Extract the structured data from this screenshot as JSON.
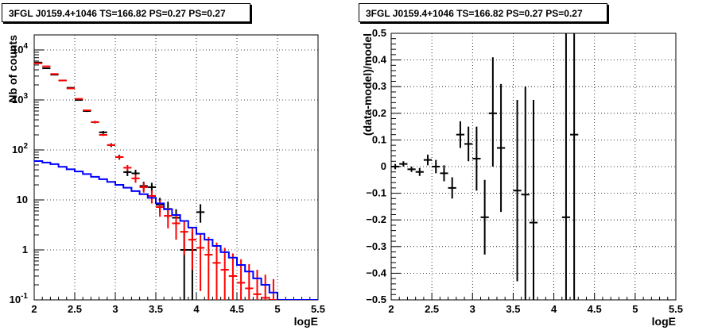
{
  "left_panel": {
    "title": "3FGL J0159.4+1046 TS=166.82 PS=0.27 PS=0.27"
  },
  "right_panel": {
    "title": "3FGL J0159.4+1046 TS=166.82 PS=0.27 PS=0.27"
  },
  "colors": {
    "data": "#000000",
    "model": "#ff0000",
    "background": "#0000ff"
  },
  "chart_data": [
    {
      "type": "scatter",
      "title": "3FGL J0159.4+1046 TS=166.82 PS=0.27 PS=0.27",
      "xlabel": "logE",
      "ylabel": "Nb of counts",
      "xlim": [
        2,
        5.5
      ],
      "ylim": [
        0.1,
        20000
      ],
      "yscale": "log",
      "grid": true,
      "x_ticks": [
        "2",
        "2.5",
        "3",
        "3.5",
        "4",
        "4.5",
        "5",
        "5.5"
      ],
      "y_ticks": [
        "10^-1",
        "1",
        "10",
        "10^2",
        "10^3",
        "10^4"
      ],
      "series": [
        {
          "role": "data",
          "color": "#000000",
          "points": [
            {
              "x": 2.05,
              "y": 5600,
              "ylo": 5520,
              "yhi": 5680
            },
            {
              "x": 2.15,
              "y": 4300,
              "ylo": 4230,
              "yhi": 4370
            },
            {
              "x": 2.25,
              "y": 3200,
              "ylo": 3140,
              "yhi": 3260
            },
            {
              "x": 2.35,
              "y": 2450,
              "ylo": 2400,
              "yhi": 2500
            },
            {
              "x": 2.45,
              "y": 1750,
              "ylo": 1710,
              "yhi": 1790
            },
            {
              "x": 2.55,
              "y": 1000,
              "ylo": 970,
              "yhi": 1030
            },
            {
              "x": 2.65,
              "y": 600,
              "ylo": 575,
              "yhi": 625
            },
            {
              "x": 2.75,
              "y": 360,
              "ylo": 340,
              "yhi": 380
            },
            {
              "x": 2.85,
              "y": 225,
              "ylo": 210,
              "yhi": 240
            },
            {
              "x": 2.95,
              "y": 125,
              "ylo": 114,
              "yhi": 136
            },
            {
              "x": 3.05,
              "y": 72,
              "ylo": 64,
              "yhi": 80
            },
            {
              "x": 3.15,
              "y": 36,
              "ylo": 30,
              "yhi": 42
            },
            {
              "x": 3.25,
              "y": 34,
              "ylo": 28,
              "yhi": 40
            },
            {
              "x": 3.35,
              "y": 19,
              "ylo": 15,
              "yhi": 23
            },
            {
              "x": 3.45,
              "y": 18,
              "ylo": 14,
              "yhi": 22
            },
            {
              "x": 3.55,
              "y": 8,
              "ylo": 5.5,
              "yhi": 11
            },
            {
              "x": 3.65,
              "y": 6.6,
              "ylo": 4.3,
              "yhi": 9.2
            },
            {
              "x": 3.75,
              "y": 4.4,
              "ylo": 2.3,
              "yhi": 6.5
            },
            {
              "x": 3.85,
              "y": 1,
              "ylo": 0.1,
              "yhi": 2.3
            },
            {
              "x": 3.95,
              "y": 1,
              "ylo": 0.1,
              "yhi": 2.3
            },
            {
              "x": 4.05,
              "y": 5.7,
              "ylo": 3.5,
              "yhi": 8.2
            }
          ]
        },
        {
          "role": "model",
          "color": "#ff0000",
          "points": [
            {
              "x": 2.05,
              "y": 5400,
              "ylo": 5330,
              "yhi": 5470
            },
            {
              "x": 2.15,
              "y": 4700,
              "ylo": 4640,
              "yhi": 4760
            },
            {
              "x": 2.25,
              "y": 3300,
              "ylo": 3250,
              "yhi": 3350
            },
            {
              "x": 2.35,
              "y": 2450,
              "ylo": 2400,
              "yhi": 2500
            },
            {
              "x": 2.45,
              "y": 1700,
              "ylo": 1660,
              "yhi": 1740
            },
            {
              "x": 2.55,
              "y": 1050,
              "ylo": 1020,
              "yhi": 1080
            },
            {
              "x": 2.65,
              "y": 620,
              "ylo": 600,
              "yhi": 640
            },
            {
              "x": 2.75,
              "y": 360,
              "ylo": 345,
              "yhi": 375
            },
            {
              "x": 2.85,
              "y": 200,
              "ylo": 190,
              "yhi": 210
            },
            {
              "x": 2.95,
              "y": 125,
              "ylo": 117,
              "yhi": 133
            },
            {
              "x": 3.05,
              "y": 72,
              "ylo": 66,
              "yhi": 78
            },
            {
              "x": 3.15,
              "y": 44,
              "ylo": 38,
              "yhi": 50
            },
            {
              "x": 3.25,
              "y": 27,
              "ylo": 22,
              "yhi": 32
            },
            {
              "x": 3.35,
              "y": 18,
              "ylo": 14,
              "yhi": 22
            },
            {
              "x": 3.45,
              "y": 12,
              "ylo": 8.5,
              "yhi": 15.5
            },
            {
              "x": 3.55,
              "y": 7.2,
              "ylo": 4.6,
              "yhi": 9.8
            },
            {
              "x": 3.65,
              "y": 4.8,
              "ylo": 2.7,
              "yhi": 6.9
            },
            {
              "x": 3.75,
              "y": 3.4,
              "ylo": 1.6,
              "yhi": 5.2
            },
            {
              "x": 3.85,
              "y": 2.3,
              "ylo": 0.8,
              "yhi": 3.8
            },
            {
              "x": 3.95,
              "y": 1.6,
              "ylo": 0.4,
              "yhi": 2.8
            },
            {
              "x": 4.05,
              "y": 1.1,
              "ylo": 0.15,
              "yhi": 2.1
            },
            {
              "x": 4.15,
              "y": 0.8,
              "ylo": 0.1,
              "yhi": 1.8
            },
            {
              "x": 4.25,
              "y": 0.55,
              "ylo": 0.1,
              "yhi": 1.4
            },
            {
              "x": 4.35,
              "y": 0.4,
              "ylo": 0.1,
              "yhi": 1.1
            },
            {
              "x": 4.45,
              "y": 0.3,
              "ylo": 0.1,
              "yhi": 0.85
            },
            {
              "x": 4.55,
              "y": 0.22,
              "ylo": 0.1,
              "yhi": 0.65
            },
            {
              "x": 4.65,
              "y": 0.17,
              "ylo": 0.1,
              "yhi": 0.52
            },
            {
              "x": 4.75,
              "y": 0.13,
              "ylo": 0.1,
              "yhi": 0.4
            },
            {
              "x": 4.85,
              "y": 0.11,
              "ylo": 0.1,
              "yhi": 0.32
            },
            {
              "x": 4.95,
              "y": 0.1,
              "ylo": 0.1,
              "yhi": 0.26
            }
          ]
        },
        {
          "role": "background",
          "color": "#0000ff",
          "edges": [
            2.0,
            2.1,
            2.2,
            2.3,
            2.4,
            2.5,
            2.6,
            2.7,
            2.8,
            2.9,
            3.0,
            3.1,
            3.2,
            3.3,
            3.4,
            3.5,
            3.6,
            3.7,
            3.8,
            3.9,
            4.0,
            4.1,
            4.2,
            4.3,
            4.4,
            4.5,
            4.6,
            4.7,
            4.8,
            4.9,
            5.0,
            5.1,
            5.2,
            5.3,
            5.4,
            5.5
          ],
          "values": [
            60,
            56,
            52,
            46,
            41,
            37,
            33,
            29,
            26,
            23,
            20,
            17.5,
            15,
            13,
            11,
            8.5,
            6.5,
            5,
            3.8,
            2.8,
            2.1,
            1.6,
            1.2,
            0.9,
            0.7,
            0.5,
            0.37,
            0.27,
            0.2,
            0.14,
            0.1,
            0.1,
            0.1,
            0.1,
            0.1
          ]
        }
      ]
    },
    {
      "type": "scatter",
      "title": "3FGL J0159.4+1046 TS=166.82 PS=0.27 PS=0.27",
      "xlabel": "logE",
      "ylabel": "(data-model)/model",
      "xlim": [
        2,
        5.5
      ],
      "ylim": [
        -0.5,
        0.5
      ],
      "grid": true,
      "x_ticks": [
        "2",
        "2.5",
        "3",
        "3.5",
        "4",
        "4.5",
        "5",
        "5.5"
      ],
      "y_ticks": [
        "−0.5",
        "−0.4",
        "−0.3",
        "−0.2",
        "−0.1",
        "0",
        "0.1",
        "0.2",
        "0.3",
        "0.4",
        "0.5"
      ],
      "series": [
        {
          "role": "residual",
          "color": "#000000",
          "points": [
            {
              "x": 2.05,
              "y": 0.0,
              "ylo": -0.01,
              "yhi": 0.01
            },
            {
              "x": 2.15,
              "y": 0.01,
              "ylo": 0.0,
              "yhi": 0.02
            },
            {
              "x": 2.25,
              "y": -0.01,
              "ylo": -0.02,
              "yhi": 0.0
            },
            {
              "x": 2.35,
              "y": -0.02,
              "ylo": -0.035,
              "yhi": -0.005
            },
            {
              "x": 2.45,
              "y": 0.025,
              "ylo": 0.005,
              "yhi": 0.045
            },
            {
              "x": 2.55,
              "y": 0.0,
              "ylo": -0.025,
              "yhi": 0.025
            },
            {
              "x": 2.65,
              "y": -0.025,
              "ylo": -0.055,
              "yhi": 0.005
            },
            {
              "x": 2.75,
              "y": -0.08,
              "ylo": -0.12,
              "yhi": -0.04
            },
            {
              "x": 2.85,
              "y": 0.12,
              "ylo": 0.07,
              "yhi": 0.17
            },
            {
              "x": 2.95,
              "y": 0.085,
              "ylo": 0.02,
              "yhi": 0.15
            },
            {
              "x": 3.05,
              "y": 0.03,
              "ylo": -0.09,
              "yhi": 0.15
            },
            {
              "x": 3.15,
              "y": -0.19,
              "ylo": -0.33,
              "yhi": -0.05
            },
            {
              "x": 3.25,
              "y": 0.2,
              "ylo": 0.0,
              "yhi": 0.41
            },
            {
              "x": 3.35,
              "y": 0.07,
              "ylo": -0.17,
              "yhi": 0.31
            },
            {
              "x": 3.55,
              "y": -0.09,
              "ylo": -0.43,
              "yhi": 0.25
            },
            {
              "x": 3.65,
              "y": -0.105,
              "ylo": -0.5,
              "yhi": 0.3
            },
            {
              "x": 3.75,
              "y": -0.21,
              "ylo": -0.5,
              "yhi": 0.25
            },
            {
              "x": 4.15,
              "y": -0.19,
              "ylo": -0.5,
              "yhi": 0.5
            },
            {
              "x": 4.25,
              "y": 0.12,
              "ylo": -0.5,
              "yhi": 0.5
            }
          ]
        }
      ]
    }
  ]
}
